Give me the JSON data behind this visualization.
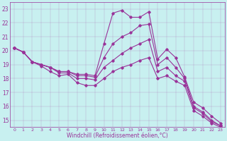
{
  "xlabel": "Windchill (Refroidissement éolien,°C)",
  "ylabel": "",
  "background_color": "#c8f0f0",
  "line_color": "#993399",
  "xlim": [
    -0.5,
    23.5
  ],
  "ylim": [
    14.5,
    23.5
  ],
  "xticks": [
    0,
    1,
    2,
    3,
    4,
    5,
    6,
    7,
    8,
    9,
    10,
    11,
    12,
    13,
    14,
    15,
    16,
    17,
    18,
    19,
    20,
    21,
    22,
    23
  ],
  "yticks": [
    15,
    16,
    17,
    18,
    19,
    20,
    21,
    22,
    23
  ],
  "series": [
    [
      20.2,
      19.9,
      19.2,
      19.0,
      18.8,
      18.5,
      18.5,
      18.3,
      18.3,
      18.2,
      20.5,
      22.7,
      22.9,
      22.4,
      22.4,
      22.8,
      19.4,
      20.1,
      19.5,
      18.1,
      16.3,
      15.9,
      15.3,
      14.8
    ],
    [
      20.2,
      19.9,
      19.2,
      19.0,
      18.8,
      18.5,
      18.5,
      18.2,
      18.2,
      18.1,
      19.5,
      20.5,
      21.0,
      21.3,
      21.8,
      21.9,
      19.0,
      19.5,
      18.8,
      18.0,
      16.0,
      15.6,
      15.0,
      14.6
    ],
    [
      20.2,
      19.9,
      19.2,
      19.0,
      18.8,
      18.4,
      18.4,
      18.0,
      18.0,
      17.9,
      18.8,
      19.3,
      19.8,
      20.2,
      20.5,
      20.8,
      18.5,
      18.8,
      18.2,
      17.8,
      15.9,
      15.5,
      14.9,
      14.6
    ],
    [
      20.2,
      19.9,
      19.2,
      18.9,
      18.5,
      18.2,
      18.3,
      17.7,
      17.5,
      17.5,
      18.0,
      18.5,
      18.8,
      19.0,
      19.3,
      19.5,
      18.0,
      18.2,
      17.8,
      17.5,
      15.7,
      15.3,
      14.8,
      14.5
    ]
  ]
}
